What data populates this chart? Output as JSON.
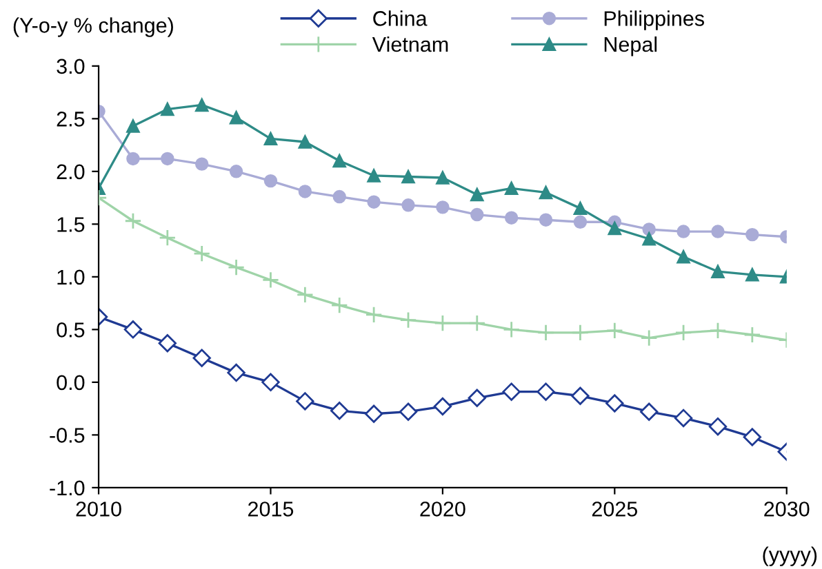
{
  "chart_data": {
    "type": "line",
    "ylabel": "(Y-o-y % change)",
    "xlabel": "(yyyy)",
    "x": [
      2010,
      2011,
      2012,
      2013,
      2014,
      2015,
      2016,
      2017,
      2018,
      2019,
      2020,
      2021,
      2022,
      2023,
      2024,
      2025,
      2026,
      2027,
      2028,
      2029,
      2030
    ],
    "series": [
      {
        "name": "China",
        "color": "#1f3a93",
        "marker": "diamond",
        "values": [
          0.62,
          0.5,
          0.37,
          0.23,
          0.09,
          0.0,
          -0.18,
          -0.27,
          -0.3,
          -0.28,
          -0.23,
          -0.15,
          -0.09,
          -0.09,
          -0.13,
          -0.2,
          -0.28,
          -0.34,
          -0.42,
          -0.52,
          -0.66
        ]
      },
      {
        "name": "Vietnam",
        "color": "#9fd4a8",
        "marker": "cross",
        "values": [
          1.75,
          1.53,
          1.37,
          1.22,
          1.09,
          0.97,
          0.83,
          0.73,
          0.64,
          0.59,
          0.56,
          0.56,
          0.5,
          0.47,
          0.47,
          0.49,
          0.42,
          0.47,
          0.49,
          0.45,
          0.4
        ]
      },
      {
        "name": "Philippines",
        "color": "#a9abd6",
        "marker": "circle",
        "values": [
          2.57,
          2.12,
          2.12,
          2.07,
          2.0,
          1.91,
          1.81,
          1.76,
          1.71,
          1.68,
          1.66,
          1.59,
          1.56,
          1.54,
          1.52,
          1.52,
          1.45,
          1.43,
          1.43,
          1.4,
          1.38
        ]
      },
      {
        "name": "Nepal",
        "color": "#2e8b87",
        "marker": "triangle",
        "values": [
          1.84,
          2.43,
          2.59,
          2.63,
          2.51,
          2.31,
          2.28,
          2.1,
          1.96,
          1.95,
          1.94,
          1.78,
          1.84,
          1.8,
          1.65,
          1.46,
          1.36,
          1.19,
          1.05,
          1.02,
          1.0
        ]
      }
    ],
    "xlim": [
      2010,
      2030
    ],
    "xticks": [
      2010,
      2015,
      2020,
      2025,
      2030
    ],
    "ylim": [
      -1.0,
      3.0
    ],
    "yticks": [
      {
        "value": -1,
        "label": "-1.0"
      },
      -0.5,
      {
        "value": 0,
        "label": "0.0"
      },
      0.5,
      {
        "value": 1,
        "label": "1.0"
      },
      1.5,
      {
        "value": 2,
        "label": "2.0"
      },
      2.5,
      {
        "value": 3,
        "label": "3.0"
      }
    ],
    "grid": false,
    "legend": "top",
    "line_style": "solid"
  }
}
